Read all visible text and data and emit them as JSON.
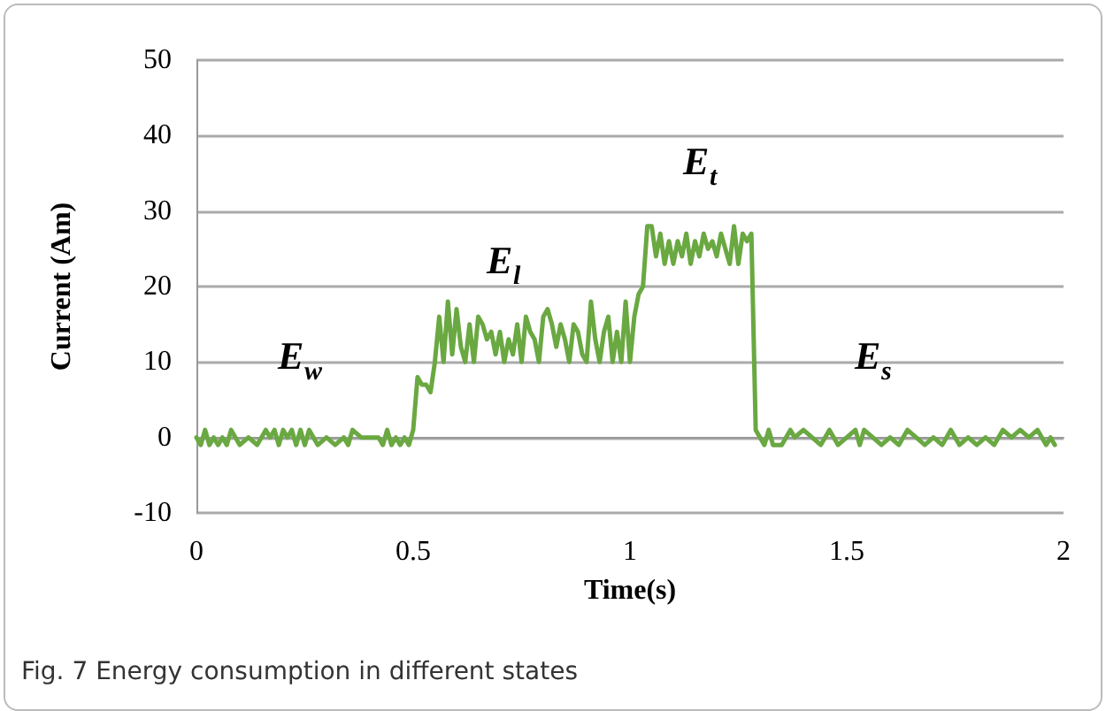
{
  "chart_data": {
    "type": "line",
    "xlabel": "Time(s)",
    "ylabel": "Current (Am)",
    "x": [
      0,
      0.01,
      0.02,
      0.03,
      0.04,
      0.05,
      0.06,
      0.07,
      0.08,
      0.09,
      0.1,
      0.12,
      0.14,
      0.16,
      0.17,
      0.18,
      0.19,
      0.2,
      0.21,
      0.22,
      0.23,
      0.24,
      0.25,
      0.26,
      0.27,
      0.28,
      0.3,
      0.32,
      0.34,
      0.35,
      0.36,
      0.38,
      0.4,
      0.42,
      0.43,
      0.44,
      0.45,
      0.46,
      0.47,
      0.48,
      0.49,
      0.5,
      0.51,
      0.52,
      0.53,
      0.54,
      0.55,
      0.56,
      0.57,
      0.58,
      0.59,
      0.6,
      0.61,
      0.62,
      0.63,
      0.64,
      0.65,
      0.66,
      0.67,
      0.68,
      0.69,
      0.7,
      0.71,
      0.72,
      0.73,
      0.74,
      0.75,
      0.76,
      0.77,
      0.78,
      0.79,
      0.8,
      0.81,
      0.82,
      0.83,
      0.84,
      0.85,
      0.86,
      0.87,
      0.88,
      0.89,
      0.9,
      0.91,
      0.92,
      0.93,
      0.94,
      0.95,
      0.96,
      0.97,
      0.98,
      0.99,
      1,
      1.01,
      1.02,
      1.03,
      1.04,
      1.05,
      1.06,
      1.07,
      1.08,
      1.09,
      1.1,
      1.11,
      1.12,
      1.13,
      1.14,
      1.15,
      1.16,
      1.17,
      1.18,
      1.19,
      1.2,
      1.21,
      1.22,
      1.23,
      1.24,
      1.25,
      1.26,
      1.27,
      1.28,
      1.29,
      1.3,
      1.31,
      1.32,
      1.33,
      1.35,
      1.37,
      1.38,
      1.4,
      1.42,
      1.44,
      1.46,
      1.47,
      1.48,
      1.5,
      1.52,
      1.53,
      1.54,
      1.56,
      1.58,
      1.6,
      1.62,
      1.64,
      1.66,
      1.68,
      1.7,
      1.72,
      1.74,
      1.76,
      1.78,
      1.8,
      1.82,
      1.84,
      1.86,
      1.88,
      1.9,
      1.92,
      1.94,
      1.96,
      1.97,
      1.98
    ],
    "series": [
      {
        "color": "#6aa842",
        "values": [
          0,
          -1,
          1,
          -1,
          0,
          -1,
          0,
          -1,
          1,
          0,
          -1,
          0,
          -1,
          1,
          0,
          1,
          -1,
          1,
          0,
          1,
          -1,
          1,
          -1,
          1,
          0,
          -1,
          0,
          -1,
          0,
          -1,
          1,
          0,
          0,
          0,
          -1,
          1,
          -1,
          0,
          -1,
          0,
          -1,
          1,
          8,
          7,
          7,
          6,
          10,
          16,
          10,
          18,
          11,
          17,
          12,
          10,
          15,
          10,
          16,
          15,
          13,
          14,
          11,
          14,
          10,
          13,
          11,
          15,
          10,
          16,
          14,
          13,
          10,
          16,
          17,
          15,
          12,
          15,
          13,
          10,
          15,
          14,
          11,
          10,
          18,
          13,
          10,
          14,
          16,
          10,
          14,
          10,
          18,
          10,
          16,
          19,
          20,
          28,
          28,
          24,
          27,
          23,
          26,
          23,
          26,
          24,
          27,
          23,
          26,
          24,
          27,
          25,
          26,
          24,
          27,
          25,
          23,
          28,
          23,
          27,
          26,
          27,
          1,
          0,
          -1,
          1,
          -1,
          -1,
          1,
          0,
          1,
          0,
          -1,
          1,
          0,
          -1,
          0,
          1,
          -1,
          1,
          0,
          -1,
          0,
          -1,
          1,
          0,
          -1,
          0,
          -1,
          1,
          -1,
          0,
          -1,
          0,
          -1,
          1,
          0,
          1,
          0,
          1,
          -1,
          0,
          -1
        ]
      }
    ],
    "xlim": [
      0,
      2
    ],
    "xticks": [
      0,
      0.5,
      1,
      1.5,
      2
    ],
    "ylim": [
      -10,
      50
    ],
    "yticks": [
      -10,
      0,
      10,
      20,
      30,
      40,
      50
    ],
    "grid": "y",
    "marker": "none",
    "line_style": "solid",
    "annotations": [
      "E$_{w}$",
      "E$_{l}$",
      "E$_{t}$",
      "E$_{s}$",
      "Fig. 7 Energy consumption in different states"
    ]
  }
}
